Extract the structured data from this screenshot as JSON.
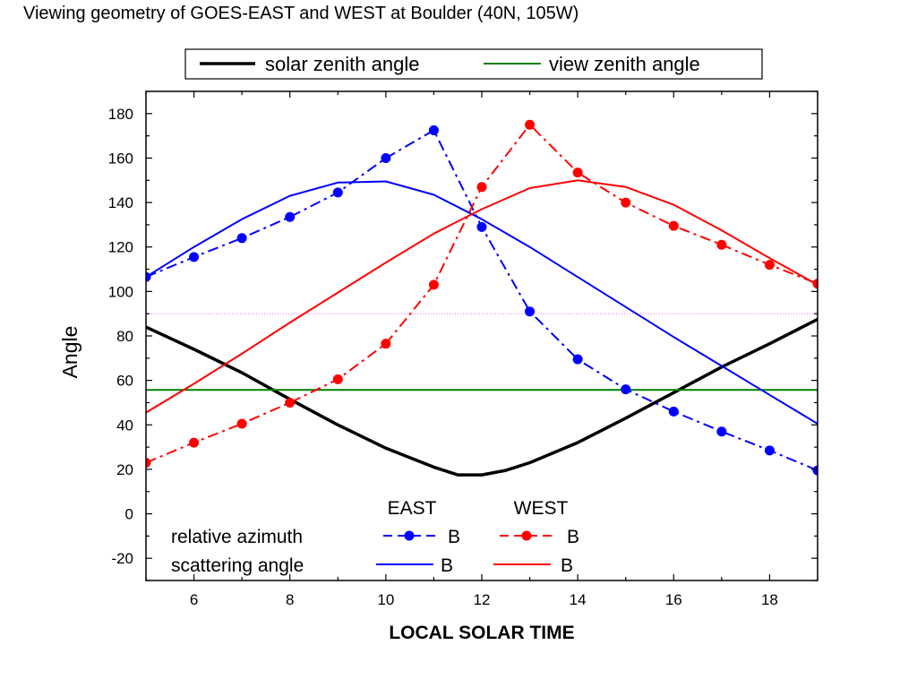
{
  "chart_data": {
    "type": "line",
    "title": "Viewing geometry of GOES-EAST and WEST at Boulder  (40N, 105W)",
    "xlabel": "LOCAL SOLAR TIME",
    "ylabel": "Angle",
    "xlim": [
      5,
      19
    ],
    "ylim": [
      -30,
      190
    ],
    "xticks": [
      6,
      8,
      10,
      12,
      14,
      16,
      18
    ],
    "yticks": [
      -20,
      0,
      20,
      40,
      60,
      80,
      100,
      120,
      140,
      160,
      180
    ],
    "grid": false,
    "legend_top": {
      "placement": "top-center",
      "entries": [
        "solar zenith angle",
        "view zenith angle"
      ]
    },
    "legend_inner": {
      "placement": "bottom-left",
      "col_headers": [
        "EAST",
        "WEST"
      ],
      "row_labels": [
        "relative azimuth",
        "scattering angle"
      ],
      "marker_label": "B"
    },
    "series": [
      {
        "name": "solar zenith angle",
        "color": "#000000",
        "style": "solid",
        "marker": "none",
        "x": [
          5,
          6,
          7,
          8,
          9,
          10,
          11,
          11.5,
          12,
          12.5,
          13,
          14,
          15,
          16,
          17,
          18,
          19
        ],
        "y": [
          84,
          74,
          63.5,
          51.5,
          40,
          29.5,
          21,
          17.5,
          17.5,
          19.5,
          23,
          32,
          43,
          54.5,
          66,
          76.5,
          87.5
        ]
      },
      {
        "name": "view zenith angle",
        "color": "#008000",
        "style": "solid",
        "marker": "none",
        "x": [
          5,
          19
        ],
        "y": [
          55.7,
          55.7
        ]
      },
      {
        "name": "relative azimuth EAST",
        "color": "#0000ff",
        "style": "dashdot",
        "marker": "circle",
        "x": [
          5,
          6,
          7,
          8,
          9,
          10,
          11,
          12,
          13,
          14,
          15,
          16,
          17,
          18,
          19
        ],
        "y": [
          106.5,
          115.5,
          124,
          133.5,
          144.5,
          160,
          172.5,
          129,
          91,
          69.5,
          56,
          46,
          37,
          28.5,
          19.5
        ]
      },
      {
        "name": "relative azimuth WEST",
        "color": "#ff0000",
        "style": "dashdot",
        "marker": "circle",
        "x": [
          5,
          6,
          7,
          8,
          9,
          10,
          11,
          12,
          13,
          14,
          15,
          16,
          17,
          18,
          19
        ],
        "y": [
          23,
          32,
          40.5,
          50,
          60.5,
          76.5,
          103,
          147,
          175,
          153.5,
          140,
          129.5,
          121,
          112,
          103.5
        ]
      },
      {
        "name": "scattering angle EAST",
        "color": "#0000ff",
        "style": "solid",
        "marker": "none",
        "x": [
          5,
          6,
          7,
          8,
          9,
          10,
          11,
          12,
          13,
          14,
          15,
          16,
          17,
          18,
          19
        ],
        "y": [
          106.5,
          120,
          132.5,
          143,
          149,
          149.5,
          143.5,
          132.5,
          120,
          106.5,
          93,
          79.5,
          66.5,
          53.5,
          40.5
        ]
      },
      {
        "name": "scattering angle WEST",
        "color": "#ff0000",
        "style": "solid",
        "marker": "none",
        "x": [
          5,
          6,
          7,
          8,
          9,
          10,
          11,
          12,
          13,
          14,
          15,
          16,
          17,
          18,
          19
        ],
        "y": [
          45.5,
          58.5,
          72,
          86,
          99.5,
          113,
          126,
          137,
          146.5,
          150,
          147,
          139,
          127.5,
          115,
          103
        ]
      },
      {
        "name": "reference 90",
        "color": "#ff66ff",
        "style": "dotted",
        "marker": "none",
        "x": [
          5,
          19
        ],
        "y": [
          90,
          90
        ]
      }
    ]
  }
}
